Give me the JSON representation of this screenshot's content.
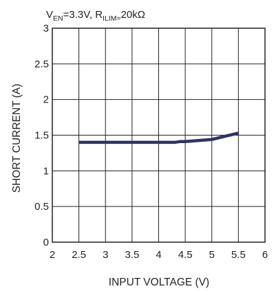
{
  "chart_data": {
    "type": "line",
    "title": "",
    "conditions": {
      "v_prefix": "V",
      "v_sub": "EN",
      "v_value": "=3.3V, ",
      "r_prefix": "R",
      "r_sub": "ILIM=",
      "r_value": "20kΩ"
    },
    "xlabel": "INPUT VOLTAGE (V)",
    "ylabel": "SHORT CURRENT (A)",
    "xlim": [
      2,
      6
    ],
    "ylim": [
      0,
      3
    ],
    "x_ticks": [
      "2",
      "2.5",
      "3",
      "3.5",
      "4",
      "4.5",
      "5",
      "5.5",
      "6"
    ],
    "y_ticks": [
      "0",
      "0.5",
      "1",
      "1.5",
      "2",
      "2.5",
      "3"
    ],
    "grid": true,
    "series": [
      {
        "x": [
          2.5,
          3.0,
          3.5,
          4.0,
          4.3,
          4.4,
          4.5,
          5.0,
          5.5
        ],
        "y": [
          1.4,
          1.4,
          1.4,
          1.4,
          1.4,
          1.41,
          1.41,
          1.44,
          1.53
        ],
        "color": "#2e3364"
      }
    ]
  }
}
